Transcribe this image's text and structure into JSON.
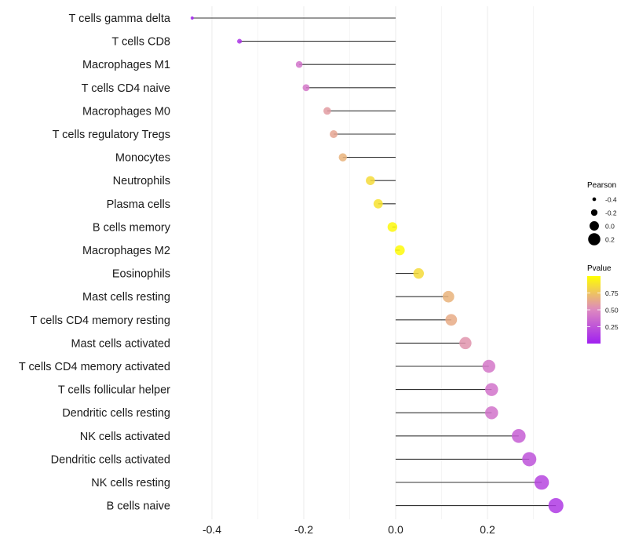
{
  "chart_data": {
    "type": "lollipop",
    "title": "",
    "xlabel": "",
    "ylabel": "",
    "xlim": [
      -0.45,
      0.36
    ],
    "x_ticks": [
      -0.4,
      -0.2,
      0.0,
      0.2
    ],
    "x_tick_labels": [
      "-0.4",
      "-0.2",
      "0.0",
      "0.2"
    ],
    "grid": true,
    "categories": [
      "T cells gamma delta",
      "T cells CD8",
      "Macrophages M1",
      "T cells CD4 naive",
      "Macrophages M0",
      "T cells regulatory  Tregs ",
      "Monocytes",
      "Neutrophils",
      "Plasma cells",
      "B cells memory",
      "Macrophages M2",
      "Eosinophils",
      "Mast cells resting",
      "T cells CD4 memory resting",
      "Mast cells activated",
      "T cells CD4 memory activated",
      "T cells follicular helper",
      "Dendritic cells resting",
      "NK cells activated",
      "Dendritic cells activated",
      "NK cells resting",
      "B cells naive"
    ],
    "values": [
      -0.443,
      -0.34,
      -0.21,
      -0.195,
      -0.149,
      -0.135,
      -0.115,
      -0.055,
      -0.038,
      -0.007,
      0.009,
      0.05,
      0.115,
      0.121,
      0.152,
      0.203,
      0.209,
      0.209,
      0.268,
      0.291,
      0.318,
      0.349
    ],
    "pvalues": [
      0.02,
      0.1,
      0.4,
      0.42,
      0.58,
      0.62,
      0.68,
      0.85,
      0.88,
      0.97,
      0.98,
      0.85,
      0.68,
      0.65,
      0.55,
      0.42,
      0.4,
      0.4,
      0.3,
      0.24,
      0.18,
      0.12
    ],
    "legend": {
      "position": "right",
      "size": {
        "title": "Pearson",
        "breaks": [
          -0.4,
          -0.2,
          0.0,
          0.2
        ],
        "labels": [
          "-0.4",
          "-0.2",
          "0.0",
          "0.2"
        ]
      },
      "color": {
        "title": "Pvalue",
        "breaks": [
          0.25,
          0.5,
          0.75
        ],
        "labels": [
          "0.25",
          "0.50",
          "0.75"
        ],
        "range": [
          0.0,
          1.0
        ],
        "low_color": "#A020F0",
        "mid_color": "#E08CB0",
        "high_color": "#FFFF00"
      }
    }
  }
}
